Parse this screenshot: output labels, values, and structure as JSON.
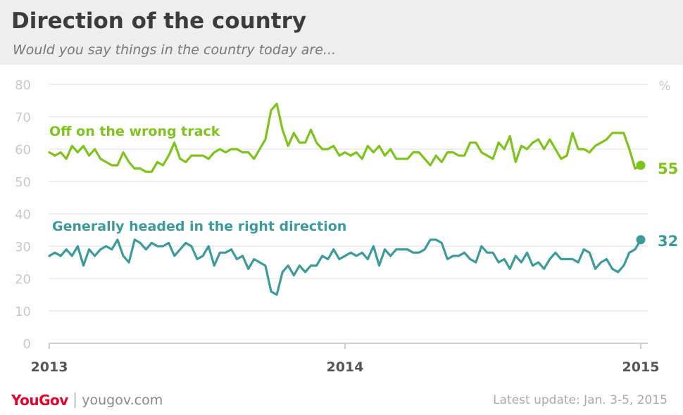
{
  "header": {
    "title": "Direction of the country",
    "subtitle": "Would you say things in the country today are..."
  },
  "footer": {
    "brand_you": "You",
    "brand_gov": "Gov",
    "separator": "|",
    "url": "yougov.com",
    "update": "Latest update: Jan. 3-5, 2015"
  },
  "colors": {
    "wrong_track": "#7dc31c",
    "right_direction": "#3d9a9a",
    "grid": "#dddddd",
    "tick": "#c8c8c8",
    "year_label": "#555555"
  },
  "chart_data": {
    "type": "line",
    "title": "Direction of the country",
    "subtitle": "Would you say things in the country today are...",
    "unit_label": "%",
    "ylim": [
      0,
      80
    ],
    "yticks": [
      "0",
      "10",
      "20",
      "30",
      "40",
      "50",
      "60",
      "70",
      "80"
    ],
    "xlim": [
      2013,
      2015.04
    ],
    "xticks": [
      {
        "value": 2013,
        "label": "2013"
      },
      {
        "value": 2014,
        "label": "2014"
      },
      {
        "value": 2015,
        "label": "2015"
      }
    ],
    "grid": true,
    "series": [
      {
        "name": "Off on the wrong track",
        "end_value": "55",
        "values": [
          59,
          58,
          59,
          57,
          61,
          59,
          61,
          58,
          60,
          57,
          56,
          55,
          55,
          59,
          56,
          54,
          54,
          53,
          53,
          56,
          55,
          58,
          62,
          57,
          56,
          58,
          58,
          58,
          57,
          59,
          60,
          59,
          60,
          60,
          59,
          59,
          57,
          60,
          63,
          72,
          74,
          66,
          61,
          65,
          62,
          62,
          66,
          62,
          60,
          60,
          61,
          58,
          59,
          58,
          59,
          57,
          61,
          59,
          61,
          58,
          60,
          57,
          57,
          57,
          59,
          59,
          57,
          55,
          58,
          56,
          59,
          59,
          58,
          58,
          62,
          62,
          59,
          58,
          57,
          62,
          60,
          64,
          56,
          61,
          60,
          62,
          63,
          60,
          63,
          60,
          57,
          58,
          65,
          60,
          60,
          59,
          61,
          62,
          63,
          65,
          65,
          65,
          60,
          54,
          55
        ]
      },
      {
        "name": "Generally headed in the right direction",
        "end_value": "32",
        "values": [
          27,
          28,
          27,
          29,
          27,
          30,
          24,
          29,
          27,
          29,
          30,
          29,
          32,
          27,
          25,
          32,
          31,
          29,
          31,
          30,
          30,
          31,
          27,
          29,
          31,
          30,
          26,
          27,
          30,
          24,
          28,
          28,
          29,
          26,
          27,
          23,
          26,
          25,
          24,
          16,
          15,
          22,
          24,
          21,
          24,
          22,
          24,
          24,
          27,
          26,
          29,
          26,
          27,
          28,
          27,
          28,
          26,
          30,
          24,
          29,
          27,
          29,
          29,
          29,
          28,
          28,
          29,
          32,
          32,
          31,
          26,
          27,
          27,
          28,
          26,
          25,
          30,
          28,
          28,
          25,
          26,
          23,
          27,
          25,
          28,
          24,
          25,
          23,
          26,
          28,
          26,
          26,
          26,
          25,
          29,
          28,
          23,
          25,
          26,
          23,
          22,
          24,
          28,
          29,
          32
        ]
      }
    ]
  }
}
